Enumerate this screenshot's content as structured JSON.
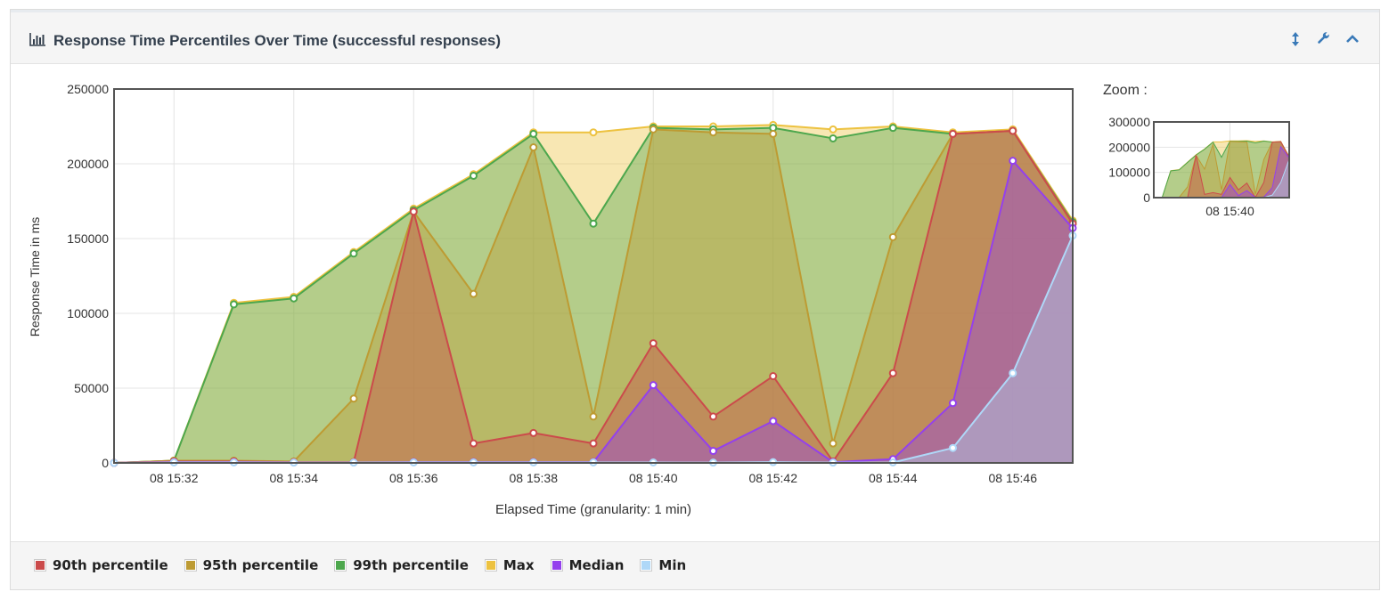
{
  "panel": {
    "title": "Response Time Percentiles Over Time (successful responses)",
    "icons": [
      "bar-chart-icon",
      "resize-vertical-icon",
      "wrench-icon",
      "chevron-up-icon"
    ]
  },
  "zoom": {
    "label": "Zoom :"
  },
  "chart_data": {
    "type": "area",
    "title": "",
    "xlabel": "Elapsed Time (granularity: 1 min)",
    "ylabel": "Response Time in ms",
    "x": [
      "08 15:31",
      "08 15:32",
      "08 15:33",
      "08 15:34",
      "08 15:35",
      "08 15:36",
      "08 15:37",
      "08 15:38",
      "08 15:39",
      "08 15:40",
      "08 15:41",
      "08 15:42",
      "08 15:43",
      "08 15:44",
      "08 15:45",
      "08 15:46",
      "08 15:47"
    ],
    "x_tick_labels": [
      "08 15:32",
      "08 15:34",
      "08 15:36",
      "08 15:38",
      "08 15:40",
      "08 15:42",
      "08 15:44",
      "08 15:46"
    ],
    "ylim": [
      0,
      250000
    ],
    "y_ticks": [
      "0",
      "50000",
      "100000",
      "150000",
      "200000",
      "250000"
    ],
    "grid": true,
    "legend_position": "bottom",
    "series": [
      {
        "name": "Max",
        "color": "#edc240",
        "values": [
          0,
          1500,
          107000,
          111000,
          141000,
          170000,
          193000,
          221000,
          221000,
          225000,
          225000,
          226000,
          223000,
          225000,
          221000,
          223000,
          162000
        ]
      },
      {
        "name": "99th percentile",
        "color": "#4da74d",
        "values": [
          0,
          1500,
          106000,
          110000,
          140000,
          169000,
          192000,
          220000,
          160000,
          224000,
          223000,
          224000,
          217000,
          224000,
          220000,
          222000,
          161000
        ]
      },
      {
        "name": "95th percentile",
        "color": "#bd9b33",
        "values": [
          0,
          1500,
          1500,
          1000,
          43000,
          168000,
          113000,
          211000,
          31000,
          223000,
          221000,
          220000,
          13000,
          151000,
          220000,
          222000,
          160000
        ]
      },
      {
        "name": "90th percentile",
        "color": "#cb4b4b",
        "values": [
          0,
          1000,
          1000,
          500,
          500,
          168000,
          13000,
          20000,
          13000,
          80000,
          31000,
          58000,
          1000,
          60000,
          220000,
          222000,
          160000
        ]
      },
      {
        "name": "Median",
        "color": "#9440ed",
        "values": [
          0,
          500,
          500,
          300,
          300,
          500,
          500,
          500,
          500,
          52000,
          8000,
          28000,
          500,
          2500,
          40000,
          202000,
          157000
        ]
      },
      {
        "name": "Min",
        "color": "#afd8f8",
        "values": [
          0,
          300,
          300,
          200,
          200,
          300,
          300,
          300,
          300,
          300,
          200,
          500,
          200,
          300,
          10000,
          60000,
          152000
        ]
      }
    ],
    "zoom_overview": {
      "y_ticks": [
        "0",
        "100000",
        "200000",
        "300000"
      ],
      "ylim": [
        0,
        300000
      ],
      "x_tick_labels": [
        "08 15:40"
      ]
    }
  },
  "legend": [
    {
      "label": "90th percentile",
      "color": "#cb4b4b"
    },
    {
      "label": "95th percentile",
      "color": "#bd9b33"
    },
    {
      "label": "99th percentile",
      "color": "#4da74d"
    },
    {
      "label": "Max",
      "color": "#edc240"
    },
    {
      "label": "Median",
      "color": "#9440ed"
    },
    {
      "label": "Min",
      "color": "#afd8f8"
    }
  ]
}
